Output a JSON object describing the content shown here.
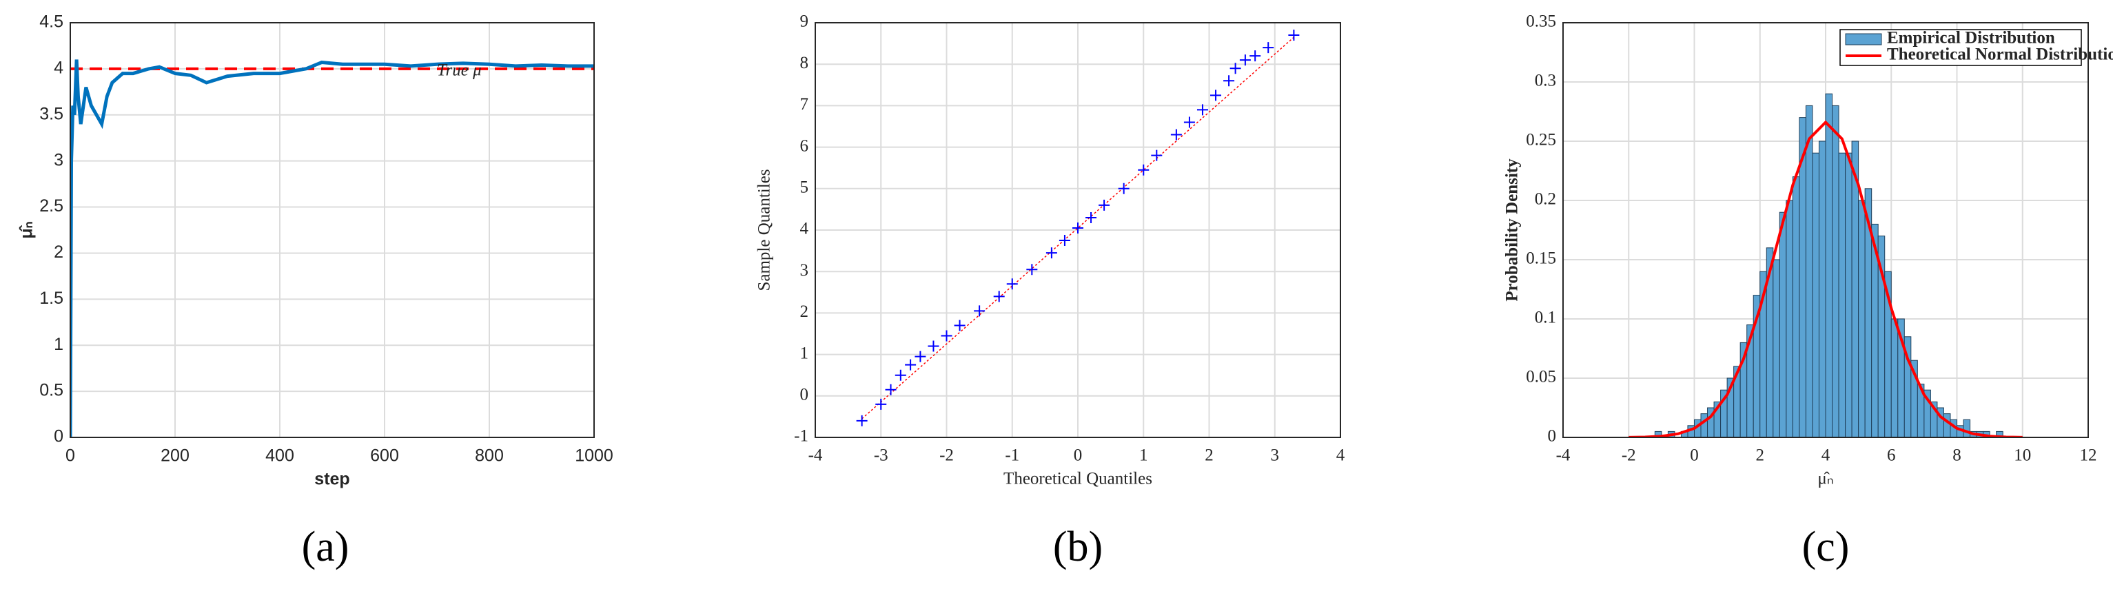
{
  "chart_data": [
    {
      "type": "line",
      "caption": "(a)",
      "xlabel": "step",
      "ylabel": "μ̂ₙ",
      "grid": true,
      "xlim": [
        0,
        1000
      ],
      "xticks": [
        0,
        200,
        400,
        600,
        800,
        1000
      ],
      "ylim": [
        0,
        4.5
      ],
      "yticks": [
        0,
        0.5,
        1,
        1.5,
        2,
        2.5,
        3,
        3.5,
        4,
        4.5
      ],
      "x": [
        0,
        2,
        5,
        8,
        12,
        15,
        20,
        25,
        30,
        40,
        50,
        60,
        70,
        80,
        100,
        120,
        150,
        170,
        200,
        230,
        260,
        300,
        350,
        400,
        450,
        480,
        520,
        600,
        650,
        700,
        750,
        800,
        850,
        900,
        950,
        1000
      ],
      "series": [
        {
          "color": "#0072bd",
          "values": [
            0,
            3.0,
            3.6,
            3.5,
            4.1,
            3.7,
            3.4,
            3.6,
            3.8,
            3.6,
            3.5,
            3.4,
            3.7,
            3.85,
            3.95,
            3.95,
            4.0,
            4.02,
            3.95,
            3.93,
            3.85,
            3.92,
            3.95,
            3.95,
            4.0,
            4.07,
            4.05,
            4.05,
            4.03,
            4.05,
            4.06,
            4.05,
            4.03,
            4.04,
            4.03,
            4.03
          ]
        }
      ],
      "reference_line": {
        "y": 4,
        "label": "True μ",
        "color": "#ff0000"
      }
    },
    {
      "type": "scatter",
      "caption": "(b)",
      "xlabel": "Theoretical Quantiles",
      "ylabel": "Sample Quantiles",
      "grid": true,
      "xlim": [
        -4,
        4
      ],
      "xticks": [
        -4,
        -3,
        -2,
        -1,
        0,
        1,
        2,
        3,
        4
      ],
      "ylim": [
        -1,
        9
      ],
      "yticks": [
        -1,
        0,
        1,
        2,
        3,
        4,
        5,
        6,
        7,
        8,
        9
      ],
      "x": [
        -3.29,
        -3.0,
        -2.85,
        -2.7,
        -2.55,
        -2.4,
        -2.2,
        -2.0,
        -1.8,
        -1.5,
        -1.2,
        -1.0,
        -0.7,
        -0.4,
        -0.2,
        0,
        0.2,
        0.4,
        0.7,
        1.0,
        1.2,
        1.5,
        1.7,
        1.9,
        2.1,
        2.3,
        2.4,
        2.55,
        2.7,
        2.9,
        3.29
      ],
      "series": [
        {
          "color": "#0000ff",
          "values": [
            -0.6,
            -0.2,
            0.15,
            0.5,
            0.75,
            0.95,
            1.2,
            1.45,
            1.7,
            2.05,
            2.4,
            2.7,
            3.05,
            3.45,
            3.75,
            4.05,
            4.3,
            4.6,
            5.0,
            5.45,
            5.8,
            6.3,
            6.6,
            6.9,
            7.25,
            7.6,
            7.9,
            8.1,
            8.2,
            8.4,
            8.7
          ]
        }
      ],
      "reference_line": {
        "x": [
          -3.29,
          3.29
        ],
        "y": [
          -0.55,
          8.65
        ],
        "color": "#ff0000"
      }
    },
    {
      "type": "histogram",
      "caption": "(c)",
      "xlabel": "μ̂ₙ",
      "ylabel": "Probability Density",
      "grid": true,
      "legend": "upper right",
      "xlim": [
        -4,
        12
      ],
      "xticks": [
        -4,
        -2,
        0,
        2,
        4,
        6,
        8,
        10,
        12
      ],
      "ylim": [
        0,
        0.35
      ],
      "yticks": [
        0,
        0.05,
        0.1,
        0.15,
        0.2,
        0.25,
        0.3,
        0.35
      ],
      "bins": [
        -1.2,
        -1.0,
        -0.8,
        -0.6,
        -0.4,
        -0.2,
        0,
        0.2,
        0.4,
        0.6,
        0.8,
        1.0,
        1.2,
        1.4,
        1.6,
        1.8,
        2.0,
        2.2,
        2.4,
        2.6,
        2.8,
        3.0,
        3.2,
        3.4,
        3.6,
        3.8,
        4.0,
        4.2,
        4.4,
        4.6,
        4.8,
        5.0,
        5.2,
        5.4,
        5.6,
        5.8,
        6.0,
        6.2,
        6.4,
        6.6,
        6.8,
        7.0,
        7.2,
        7.4,
        7.6,
        7.8,
        8.0,
        8.2,
        8.4,
        8.6,
        8.8,
        9.0,
        9.2,
        9.4,
        9.6,
        9.8,
        10.0
      ],
      "series": [
        {
          "name": "Empirical Distribution",
          "color": "#5ba3d3",
          "values": [
            0.005,
            0,
            0.005,
            0,
            0.005,
            0.01,
            0.015,
            0.02,
            0.025,
            0.03,
            0.04,
            0.05,
            0.06,
            0.08,
            0.095,
            0.12,
            0.14,
            0.16,
            0.15,
            0.19,
            0.2,
            0.22,
            0.27,
            0.28,
            0.24,
            0.25,
            0.29,
            0.28,
            0.24,
            0.24,
            0.25,
            0.2,
            0.21,
            0.18,
            0.17,
            0.14,
            0.1,
            0.1,
            0.085,
            0.065,
            0.045,
            0.04,
            0.03,
            0.025,
            0.02,
            0.015,
            0.01,
            0.015,
            0.005,
            0.005,
            0.005,
            0,
            0.005,
            0,
            0,
            0
          ]
        },
        {
          "name": "Theoretical Normal Distribution",
          "color": "#ff0000",
          "type": "line",
          "x": [
            -2,
            -1.5,
            -1,
            -0.5,
            0,
            0.5,
            1,
            1.5,
            2,
            2.5,
            3,
            3.5,
            4,
            4.5,
            5,
            5.5,
            6,
            6.5,
            7,
            7.5,
            8,
            8.5,
            9,
            9.5,
            10
          ],
          "values": [
            0.0001,
            0.0003,
            0.001,
            0.003,
            0.0076,
            0.0175,
            0.036,
            0.0663,
            0.109,
            0.161,
            0.213,
            0.252,
            0.266,
            0.252,
            0.213,
            0.161,
            0.109,
            0.0663,
            0.036,
            0.0175,
            0.0076,
            0.003,
            0.001,
            0.0003,
            0.0001
          ]
        }
      ]
    }
  ]
}
